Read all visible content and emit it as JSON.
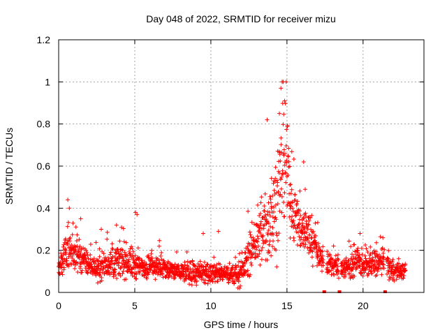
{
  "chart_data": {
    "type": "scatter",
    "title": "Day 048 of 2022, SRMTID for receiver mizu",
    "xlabel": "GPS time / hours",
    "ylabel": "SRMTID / TECUs",
    "xlim": [
      0,
      24
    ],
    "ylim": [
      0,
      1.2
    ],
    "xticks": [
      0,
      5,
      10,
      15,
      20
    ],
    "xtick_labels": [
      "0",
      "5",
      "10",
      "15",
      "20"
    ],
    "yticks": [
      0,
      0.2,
      0.4,
      0.6,
      0.8,
      1.0,
      1.2
    ],
    "ytick_labels": [
      "0",
      "0.2",
      "0.4",
      "0.6",
      "0.8",
      "1",
      "1.2"
    ],
    "grid": true,
    "marker": "+",
    "color": "#ff0000",
    "gap_markers_x": [
      17.45,
      18.45,
      21.45
    ],
    "profile": {
      "x": [
        0.0,
        0.3,
        0.6,
        1.0,
        1.4,
        1.8,
        2.2,
        2.6,
        3.0,
        3.5,
        4.0,
        4.5,
        5.0,
        5.3,
        5.8,
        6.5,
        7.0,
        7.5,
        8.0,
        8.5,
        9.0,
        9.5,
        10.0,
        10.5,
        11.0,
        11.5,
        12.0,
        12.4,
        12.8,
        13.2,
        13.6,
        13.9,
        14.2,
        14.5,
        14.7,
        14.9,
        15.2,
        15.6,
        16.0,
        16.4,
        16.8,
        17.2,
        17.6,
        18.0,
        18.4,
        18.8,
        19.2,
        19.6,
        20.0,
        20.5,
        21.0,
        21.5,
        22.0,
        22.5,
        22.8
      ],
      "center": [
        0.1,
        0.17,
        0.2,
        0.18,
        0.17,
        0.14,
        0.12,
        0.11,
        0.13,
        0.14,
        0.15,
        0.15,
        0.13,
        0.12,
        0.12,
        0.13,
        0.11,
        0.1,
        0.1,
        0.09,
        0.09,
        0.08,
        0.09,
        0.09,
        0.09,
        0.08,
        0.09,
        0.16,
        0.22,
        0.26,
        0.3,
        0.35,
        0.4,
        0.5,
        0.58,
        0.6,
        0.45,
        0.35,
        0.3,
        0.28,
        0.22,
        0.17,
        0.14,
        0.13,
        0.12,
        0.12,
        0.13,
        0.14,
        0.13,
        0.13,
        0.14,
        0.14,
        0.1,
        0.1,
        0.1
      ],
      "spread": [
        0.03,
        0.07,
        0.1,
        0.07,
        0.07,
        0.05,
        0.04,
        0.05,
        0.06,
        0.06,
        0.07,
        0.07,
        0.07,
        0.05,
        0.05,
        0.05,
        0.05,
        0.04,
        0.04,
        0.04,
        0.05,
        0.05,
        0.04,
        0.04,
        0.04,
        0.04,
        0.05,
        0.08,
        0.1,
        0.12,
        0.15,
        0.18,
        0.2,
        0.22,
        0.25,
        0.25,
        0.15,
        0.12,
        0.1,
        0.1,
        0.07,
        0.05,
        0.05,
        0.05,
        0.05,
        0.05,
        0.05,
        0.06,
        0.05,
        0.05,
        0.06,
        0.06,
        0.04,
        0.03,
        0.03
      ]
    },
    "gaps": [
      [
        17.4,
        17.6
      ],
      [
        18.4,
        18.55
      ],
      [
        21.4,
        21.55
      ]
    ],
    "peaks": [
      {
        "x": 0.6,
        "y": 0.44
      },
      {
        "x": 0.7,
        "y": 0.4
      },
      {
        "x": 1.45,
        "y": 0.35
      },
      {
        "x": 2.8,
        "y": 0.3
      },
      {
        "x": 3.8,
        "y": 0.32
      },
      {
        "x": 5.05,
        "y": 0.38
      },
      {
        "x": 5.15,
        "y": 0.37
      },
      {
        "x": 9.5,
        "y": 0.28
      },
      {
        "x": 10.5,
        "y": 0.29
      },
      {
        "x": 13.7,
        "y": 0.82
      },
      {
        "x": 14.6,
        "y": 0.97
      },
      {
        "x": 14.75,
        "y": 1.0
      },
      {
        "x": 14.85,
        "y": 0.91
      },
      {
        "x": 14.5,
        "y": 0.85
      },
      {
        "x": 16.1,
        "y": 0.62
      },
      {
        "x": 16.2,
        "y": 0.49
      },
      {
        "x": 19.8,
        "y": 0.28
      },
      {
        "x": 21.3,
        "y": 0.26
      }
    ]
  }
}
